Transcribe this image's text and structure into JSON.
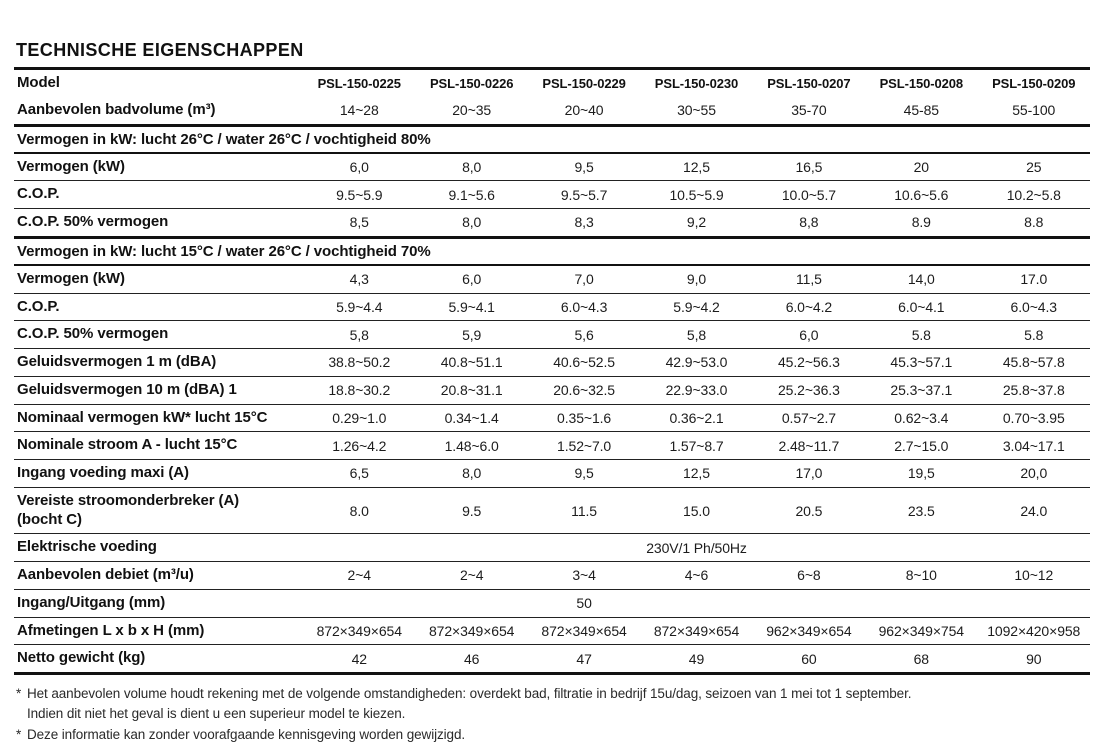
{
  "page": {
    "title": "TECHNISCHE EIGENSCHAPPEN"
  },
  "table": {
    "rows": [
      {
        "type": "header",
        "label": "Model",
        "top": "none",
        "values": [
          "PSL-150-0225",
          "PSL-150-0226",
          "PSL-150-0229",
          "PSL-150-0230",
          "PSL-150-0207",
          "PSL-150-0208",
          "PSL-150-0209"
        ]
      },
      {
        "type": "data",
        "label": "Aanbevolen badvolume (m³)",
        "top": "none",
        "values": [
          "14~28",
          "20~35",
          "20~40",
          "30~55",
          "35-70",
          "45-85",
          "55-100"
        ]
      },
      {
        "type": "section",
        "label": "Vermogen in kW: lucht 26°C / water 26°C / vochtigheid 80%",
        "top": "thick"
      },
      {
        "type": "data",
        "label": "Vermogen (kW)",
        "top": "med",
        "values": [
          "6,0",
          "8,0",
          "9,5",
          "12,5",
          "16,5",
          "20",
          "25"
        ]
      },
      {
        "type": "data",
        "label": "C.O.P.",
        "top": "thin",
        "values": [
          "9.5~5.9",
          "9.1~5.6",
          "9.5~5.7",
          "10.5~5.9",
          "10.0~5.7",
          "10.6~5.6",
          "10.2~5.8"
        ]
      },
      {
        "type": "data",
        "label": "C.O.P. 50% vermogen",
        "top": "thin",
        "values": [
          "8,5",
          "8,0",
          "8,3",
          "9,2",
          "8,8",
          "8.9",
          "8.8"
        ]
      },
      {
        "type": "section",
        "label": "Vermogen in kW: lucht 15°C / water 26°C / vochtigheid 70%",
        "top": "thick"
      },
      {
        "type": "data",
        "label": "Vermogen (kW)",
        "top": "med",
        "values": [
          "4,3",
          "6,0",
          "7,0",
          "9,0",
          "11,5",
          "14,0",
          "17.0"
        ]
      },
      {
        "type": "data",
        "label": "C.O.P.",
        "top": "thin",
        "values": [
          "5.9~4.4",
          "5.9~4.1",
          "6.0~4.3",
          "5.9~4.2",
          "6.0~4.2",
          "6.0~4.1",
          "6.0~4.3"
        ]
      },
      {
        "type": "data",
        "label": "C.O.P. 50% vermogen",
        "top": "thin",
        "values": [
          "5,8",
          "5,9",
          "5,6",
          "5,8",
          "6,0",
          "5.8",
          "5.8"
        ]
      },
      {
        "type": "data",
        "label": "Geluidsvermogen 1 m (dBA)",
        "top": "thin",
        "values": [
          "38.8~50.2",
          "40.8~51.1",
          "40.6~52.5",
          "42.9~53.0",
          "45.2~56.3",
          "45.3~57.1",
          "45.8~57.8"
        ]
      },
      {
        "type": "data",
        "label": "Geluidsvermogen 10 m (dBA) 1",
        "top": "thin",
        "values": [
          "18.8~30.2",
          "20.8~31.1",
          "20.6~32.5",
          "22.9~33.0",
          "25.2~36.3",
          "25.3~37.1",
          "25.8~37.8"
        ]
      },
      {
        "type": "data",
        "label": "Nominaal vermogen kW* lucht 15°C",
        "top": "thin",
        "values": [
          "0.29~1.0",
          "0.34~1.4",
          "0.35~1.6",
          "0.36~2.1",
          "0.57~2.7",
          "0.62~3.4",
          "0.70~3.95"
        ]
      },
      {
        "type": "data",
        "label": "Nominale stroom A - lucht 15°C",
        "top": "thin",
        "values": [
          "1.26~4.2",
          "1.48~6.0",
          "1.52~7.0",
          "1.57~8.7",
          "2.48~11.7",
          "2.7~15.0",
          "3.04~17.1"
        ]
      },
      {
        "type": "data",
        "label": "Ingang voeding maxi (A)",
        "top": "thin",
        "values": [
          "6,5",
          "8,0",
          "9,5",
          "12,5",
          "17,0",
          "19,5",
          "20,0"
        ]
      },
      {
        "type": "data",
        "label": "Vereiste stroomonderbreker (A)\n(bocht C)",
        "top": "thin",
        "values": [
          "8.0",
          "9.5",
          "11.5",
          "15.0",
          "20.5",
          "23.5",
          "24.0"
        ]
      },
      {
        "type": "merged",
        "label": "Elektrische voeding",
        "top": "thin",
        "value": "230V/1 Ph/50Hz"
      },
      {
        "type": "data",
        "label": "Aanbevolen debiet (m³/u)",
        "top": "thin",
        "values": [
          "2~4",
          "2~4",
          "3~4",
          "4~6",
          "6~8",
          "8~10",
          "10~12"
        ]
      },
      {
        "type": "data",
        "label": "Ingang/Uitgang (mm)",
        "top": "thin",
        "values": [
          "",
          "",
          "50",
          "",
          "",
          "",
          ""
        ]
      },
      {
        "type": "data",
        "label": "Afmetingen L x b x H (mm)",
        "top": "thin",
        "values": [
          "872×349×654",
          "872×349×654",
          "872×349×654",
          "872×349×654",
          "962×349×654",
          "962×349×754",
          "1092×420×958"
        ]
      },
      {
        "type": "data",
        "label": "Netto gewicht (kg)",
        "top": "thin",
        "values": [
          "42",
          "46",
          "47",
          "49",
          "60",
          "68",
          "90"
        ]
      }
    ]
  },
  "footnotes": [
    {
      "marker": "*",
      "lines": [
        "Het aanbevolen volume houdt rekening met de volgende omstandigheden: overdekt bad, filtratie in bedrijf 15u/dag, seizoen van 1 mei tot 1 september.",
        "Indien dit niet het geval is dient u een superieur model te kiezen."
      ]
    },
    {
      "marker": "*",
      "lines": [
        "Deze informatie kan zonder voorafgaande kennisgeving worden gewijzigd."
      ]
    }
  ]
}
